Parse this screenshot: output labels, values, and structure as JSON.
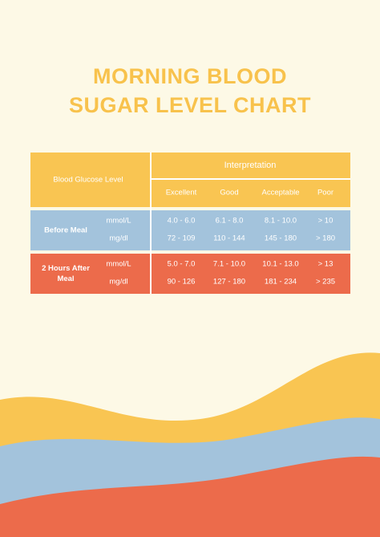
{
  "title_lines": [
    "MORNING BLOOD",
    "SUGAR LEVEL CHART"
  ],
  "table": {
    "row_header": "Blood Glucose Level",
    "group_header": "Interpretation",
    "columns": [
      "Excellent",
      "Good",
      "Acceptable",
      "Poor"
    ],
    "groups": [
      {
        "label": "Before Meal",
        "rows": [
          {
            "unit": "mmol/L",
            "values": [
              "4.0 - 6.0",
              "6.1 - 8.0",
              "8.1 - 10.0",
              "> 10"
            ]
          },
          {
            "unit": "mg/dl",
            "values": [
              "72 - 109",
              "110 - 144",
              "145 - 180",
              "> 180"
            ]
          }
        ]
      },
      {
        "label": "2 Hours After Meal",
        "rows": [
          {
            "unit": "mmol/L",
            "values": [
              "5.0 - 7.0",
              "7.1 - 10.0",
              "10.1 - 13.0",
              "> 13"
            ]
          },
          {
            "unit": "mg/dl",
            "values": [
              "90 - 126",
              "127 - 180",
              "181 - 234",
              "> 235"
            ]
          }
        ]
      }
    ]
  }
}
